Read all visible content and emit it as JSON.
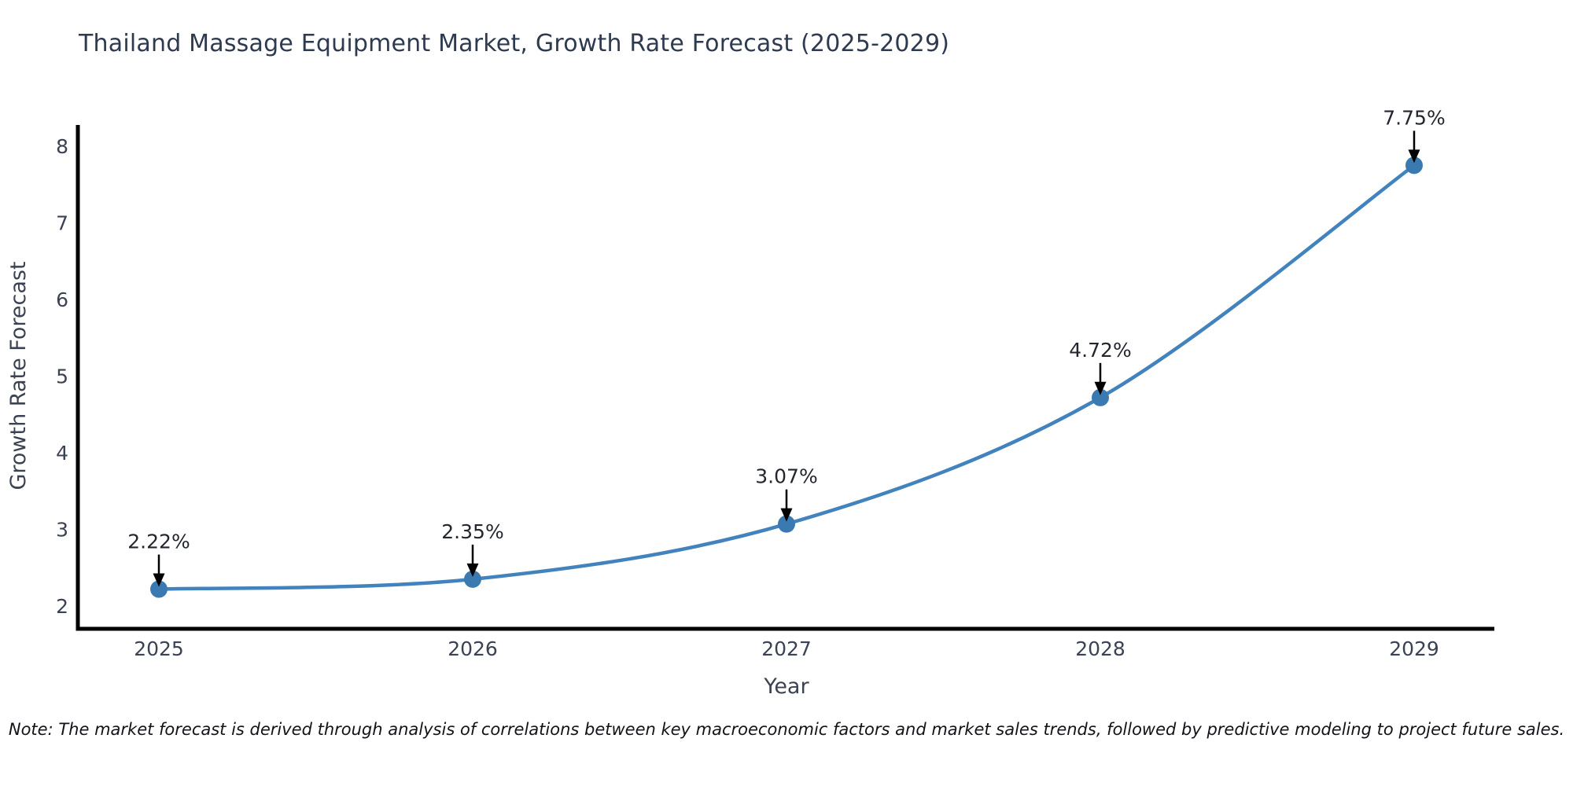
{
  "title": "Thailand Massage Equipment Market, Growth Rate Forecast (2025-2029)",
  "note": "Note: The market forecast is derived through analysis of correlations between key macroeconomic factors and market sales trends, followed by predictive modeling to project future sales.",
  "chart_data": {
    "type": "line",
    "title": "Thailand Massage Equipment Market, Growth Rate Forecast (2025-2029)",
    "x": [
      2025,
      2026,
      2027,
      2028,
      2029
    ],
    "values": [
      2.22,
      2.35,
      3.07,
      4.72,
      7.75
    ],
    "point_labels": [
      "2.22%",
      "2.35%",
      "3.07%",
      "4.72%",
      "7.75%"
    ],
    "xlabel": "Year",
    "ylabel": "Growth Rate Forecast",
    "yticks": [
      2,
      3,
      4,
      5,
      6,
      7,
      8
    ],
    "ylim": [
      1.7,
      8.35
    ],
    "grid": false,
    "legend_position": "none",
    "smooth_curve": true,
    "colors": {
      "line": "#4383bd",
      "marker": "#3b79b1",
      "axis": "#000000",
      "tick_label": "#3b4252",
      "axis_title": "#3b4252",
      "annotation_text": "#23262e",
      "annotation_arrow": "#000000",
      "title_text": "#2e3a50",
      "background": "#ffffff"
    }
  }
}
